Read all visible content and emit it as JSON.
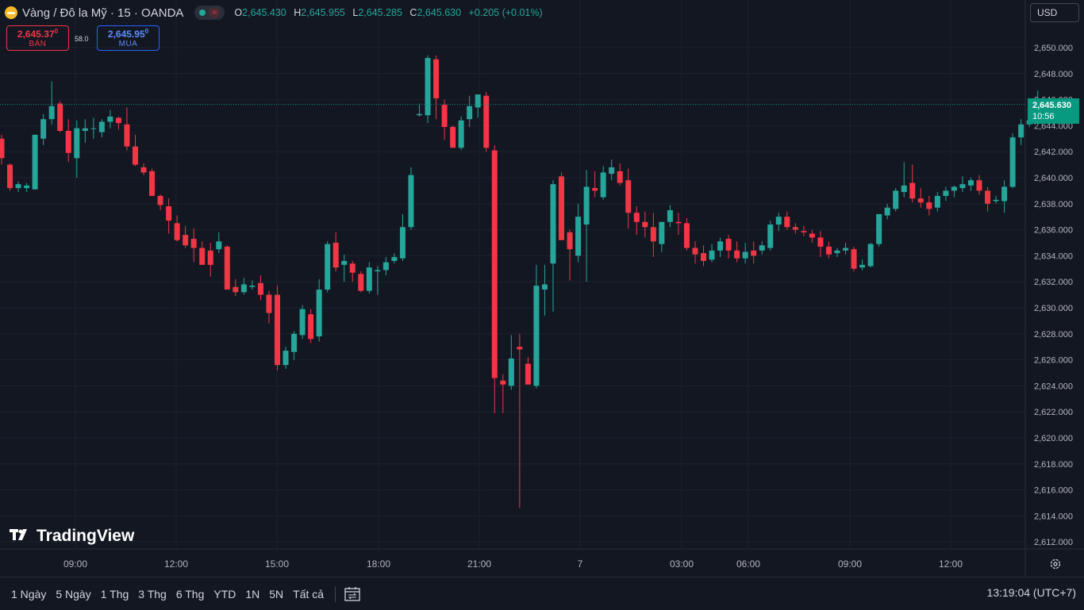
{
  "header": {
    "symbol": "Vàng / Đô la Mỹ · 15 · OANDA",
    "approx_glyph": "≈",
    "ohlc": [
      {
        "k": "O",
        "v": "2,645.430"
      },
      {
        "k": "H",
        "v": "2,645.955"
      },
      {
        "k": "L",
        "v": "2,645.285"
      },
      {
        "k": "C",
        "v": "2,645.630"
      }
    ],
    "change": "+0.205 (+0.01%)"
  },
  "trade": {
    "sell_price": "2,645.37",
    "sell_price_sup": "0",
    "sell_label": "BÁN",
    "spread": "58.0",
    "buy_price": "2,645.95",
    "buy_price_sup": "0",
    "buy_label": "MUA"
  },
  "currency": "USD",
  "last_price": {
    "price": "2,645.630",
    "countdown": "10:56"
  },
  "brand": "TradingView",
  "ranges": [
    "1 Ngày",
    "5 Ngày",
    "1 Thg",
    "3 Thg",
    "6 Thg",
    "YTD",
    "1N",
    "5N",
    "Tất cả"
  ],
  "clock": "13:19:04 (UTC+7)",
  "colors": {
    "up": "#26a69a",
    "down": "#f23645",
    "bg": "#131722",
    "grid": "#1e222d"
  },
  "chart_data": {
    "type": "candlestick",
    "ylim": [
      2611.0,
      2651.5
    ],
    "y_ticks": [
      "2,650.000",
      "2,648.000",
      "2,646.000",
      "2,644.000",
      "2,642.000",
      "2,640.000",
      "2,638.000",
      "2,636.000",
      "2,634.000",
      "2,632.000",
      "2,630.000",
      "2,628.000",
      "2,626.000",
      "2,624.000",
      "2,622.000",
      "2,620.000",
      "2,618.000",
      "2,616.000",
      "2,614.000",
      "2,612.000"
    ],
    "x_ticks": [
      "09:00",
      "12:00",
      "15:00",
      "18:00",
      "21:00",
      "7",
      "03:00",
      "06:00",
      "09:00",
      "12:00"
    ],
    "last_price": 2645.63,
    "candles": [
      [
        2643.0,
        2643.3,
        2641.0,
        2641.5
      ],
      [
        2641.0,
        2641.1,
        2639.0,
        2639.2
      ],
      [
        2639.2,
        2639.7,
        2638.9,
        2639.5
      ],
      [
        2639.2,
        2639.6,
        2638.9,
        2639.4
      ],
      [
        2639.1,
        2643.3,
        2639.1,
        2643.3
      ],
      [
        2643.0,
        2644.9,
        2642.5,
        2644.5
      ],
      [
        2644.5,
        2647.4,
        2644.1,
        2645.5
      ],
      [
        2645.7,
        2645.9,
        2643.5,
        2643.6
      ],
      [
        2643.6,
        2644.5,
        2641.2,
        2641.9
      ],
      [
        2641.5,
        2644.4,
        2640.0,
        2643.8
      ],
      [
        2643.6,
        2644.5,
        2642.7,
        2643.8
      ],
      [
        2643.8,
        2644.6,
        2643.0,
        2643.8
      ],
      [
        2643.5,
        2644.5,
        2643.1,
        2644.3
      ],
      [
        2644.3,
        2645.2,
        2643.8,
        2644.7
      ],
      [
        2644.6,
        2644.7,
        2643.7,
        2644.2
      ],
      [
        2644.1,
        2645.4,
        2642.1,
        2642.4
      ],
      [
        2642.4,
        2643.3,
        2640.9,
        2641.0
      ],
      [
        2640.8,
        2641.1,
        2640.2,
        2640.4
      ],
      [
        2640.5,
        2640.7,
        2638.8,
        2638.6
      ],
      [
        2638.6,
        2638.7,
        2637.5,
        2637.9
      ],
      [
        2637.8,
        2638.4,
        2635.7,
        2636.7
      ],
      [
        2636.5,
        2637.1,
        2635.1,
        2635.2
      ],
      [
        2635.6,
        2636.3,
        2634.6,
        2634.8
      ],
      [
        2635.3,
        2636.1,
        2633.5,
        2634.6
      ],
      [
        2634.6,
        2635.1,
        2633.3,
        2633.3
      ],
      [
        2634.4,
        2635.0,
        2632.4,
        2633.3
      ],
      [
        2634.5,
        2635.8,
        2634.2,
        2635.1
      ],
      [
        2634.7,
        2634.8,
        2631.6,
        2631.4
      ],
      [
        2631.6,
        2632.2,
        2630.9,
        2631.2
      ],
      [
        2631.2,
        2632.3,
        2631.0,
        2631.8
      ],
      [
        2631.6,
        2632.1,
        2631.4,
        2631.7
      ],
      [
        2631.9,
        2632.5,
        2630.6,
        2631.0
      ],
      [
        2631.0,
        2631.3,
        2628.8,
        2629.6
      ],
      [
        2631.0,
        2631.7,
        2625.2,
        2625.6
      ],
      [
        2625.6,
        2627.0,
        2625.3,
        2626.7
      ],
      [
        2626.6,
        2628.2,
        2626.0,
        2628.0
      ],
      [
        2627.9,
        2630.2,
        2627.6,
        2629.9
      ],
      [
        2629.5,
        2629.9,
        2627.3,
        2627.6
      ],
      [
        2627.8,
        2632.2,
        2627.4,
        2631.4
      ],
      [
        2631.4,
        2635.1,
        2631.2,
        2634.9
      ],
      [
        2635.0,
        2635.8,
        2632.8,
        2633.1
      ],
      [
        2633.3,
        2634.1,
        2632.0,
        2633.6
      ],
      [
        2633.4,
        2633.6,
        2632.0,
        2632.7
      ],
      [
        2632.6,
        2632.8,
        2631.2,
        2631.3
      ],
      [
        2631.3,
        2633.5,
        2631.1,
        2633.1
      ],
      [
        2632.8,
        2633.2,
        2631.0,
        2632.9
      ],
      [
        2632.9,
        2633.9,
        2632.5,
        2633.5
      ],
      [
        2633.6,
        2634.2,
        2633.4,
        2633.9
      ],
      [
        2633.8,
        2637.2,
        2633.6,
        2636.2
      ],
      [
        2636.2,
        2640.8,
        2636.0,
        2640.2
      ],
      [
        2644.8,
        2645.7,
        2644.7,
        2644.9
      ],
      [
        2644.8,
        2649.4,
        2644.2,
        2649.2
      ],
      [
        2649.1,
        2649.4,
        2644.5,
        2646.1
      ],
      [
        2645.6,
        2646.0,
        2642.9,
        2643.9
      ],
      [
        2643.9,
        2644.0,
        2642.5,
        2642.3
      ],
      [
        2642.3,
        2644.7,
        2642.1,
        2644.4
      ],
      [
        2644.5,
        2646.3,
        2643.9,
        2645.5
      ],
      [
        2645.4,
        2646.1,
        2644.6,
        2646.4
      ],
      [
        2646.3,
        2646.6,
        2642.0,
        2642.3
      ],
      [
        2642.1,
        2642.5,
        2621.9,
        2624.6
      ],
      [
        2624.4,
        2624.9,
        2621.9,
        2624.1
      ],
      [
        2624.0,
        2627.9,
        2623.7,
        2626.1
      ],
      [
        2627.0,
        2628.0,
        2614.6,
        2626.8
      ],
      [
        2625.7,
        2626.2,
        2624.2,
        2624.1
      ],
      [
        2624.0,
        2633.3,
        2623.8,
        2631.7
      ],
      [
        2631.4,
        2633.3,
        2629.4,
        2631.8
      ],
      [
        2633.4,
        2639.8,
        2629.7,
        2639.5
      ],
      [
        2640.1,
        2640.4,
        2635.4,
        2635.2
      ],
      [
        2635.8,
        2636.0,
        2632.1,
        2634.5
      ],
      [
        2634.0,
        2638.0,
        2633.5,
        2637.0
      ],
      [
        2636.4,
        2640.6,
        2632.0,
        2639.3
      ],
      [
        2639.2,
        2640.5,
        2638.5,
        2639.0
      ],
      [
        2638.5,
        2640.9,
        2638.3,
        2640.4
      ],
      [
        2640.3,
        2641.4,
        2639.8,
        2640.8
      ],
      [
        2640.5,
        2641.1,
        2639.4,
        2639.6
      ],
      [
        2639.8,
        2640.7,
        2636.1,
        2637.3
      ],
      [
        2637.3,
        2637.8,
        2635.6,
        2636.6
      ],
      [
        2636.6,
        2637.4,
        2635.4,
        2636.2
      ],
      [
        2636.2,
        2637.3,
        2633.9,
        2635.1
      ],
      [
        2634.9,
        2636.6,
        2634.3,
        2636.6
      ],
      [
        2636.6,
        2637.9,
        2636.2,
        2637.5
      ],
      [
        2636.6,
        2637.3,
        2635.6,
        2636.5
      ],
      [
        2636.5,
        2636.9,
        2634.4,
        2634.6
      ],
      [
        2634.6,
        2635.1,
        2633.4,
        2634.1
      ],
      [
        2634.2,
        2634.8,
        2633.2,
        2633.6
      ],
      [
        2633.7,
        2634.9,
        2633.5,
        2634.4
      ],
      [
        2634.4,
        2635.4,
        2633.9,
        2635.1
      ],
      [
        2635.3,
        2635.6,
        2633.8,
        2634.4
      ],
      [
        2634.4,
        2635.1,
        2633.5,
        2633.8
      ],
      [
        2633.8,
        2635.0,
        2633.4,
        2634.3
      ],
      [
        2634.4,
        2635.1,
        2633.4,
        2634.0
      ],
      [
        2634.4,
        2635.1,
        2634.1,
        2634.8
      ],
      [
        2634.6,
        2636.7,
        2634.4,
        2636.4
      ],
      [
        2636.4,
        2637.3,
        2635.9,
        2637.0
      ],
      [
        2637.0,
        2637.4,
        2636.0,
        2636.2
      ],
      [
        2636.2,
        2636.5,
        2635.7,
        2636.0
      ],
      [
        2635.9,
        2636.3,
        2635.5,
        2635.8
      ],
      [
        2635.7,
        2636.0,
        2635.0,
        2635.4
      ],
      [
        2635.4,
        2635.9,
        2633.9,
        2634.7
      ],
      [
        2634.7,
        2635.1,
        2633.8,
        2634.1
      ],
      [
        2634.2,
        2634.6,
        2633.9,
        2634.4
      ],
      [
        2634.4,
        2635.0,
        2634.1,
        2634.6
      ],
      [
        2634.5,
        2634.7,
        2632.8,
        2633.0
      ],
      [
        2633.1,
        2633.7,
        2632.9,
        2633.3
      ],
      [
        2633.2,
        2635.0,
        2633.1,
        2634.9
      ],
      [
        2634.9,
        2637.2,
        2634.7,
        2637.2
      ],
      [
        2637.1,
        2638.0,
        2636.8,
        2637.7
      ],
      [
        2637.6,
        2639.2,
        2637.4,
        2639.0
      ],
      [
        2638.9,
        2641.2,
        2638.5,
        2639.4
      ],
      [
        2639.6,
        2641.0,
        2638.1,
        2638.4
      ],
      [
        2638.4,
        2639.2,
        2637.7,
        2638.1
      ],
      [
        2638.1,
        2638.6,
        2637.1,
        2637.6
      ],
      [
        2637.7,
        2638.9,
        2637.4,
        2638.6
      ],
      [
        2638.6,
        2639.3,
        2638.2,
        2639.0
      ],
      [
        2639.0,
        2639.4,
        2638.5,
        2639.3
      ],
      [
        2639.2,
        2640.1,
        2638.9,
        2639.5
      ],
      [
        2639.4,
        2640.0,
        2639.0,
        2639.8
      ],
      [
        2639.8,
        2640.2,
        2638.7,
        2639.0
      ],
      [
        2639.0,
        2639.3,
        2637.4,
        2638.0
      ],
      [
        2638.2,
        2638.6,
        2638.0,
        2638.3
      ],
      [
        2638.2,
        2639.8,
        2637.3,
        2639.3
      ],
      [
        2639.3,
        2643.4,
        2639.2,
        2643.1
      ],
      [
        2643.1,
        2644.5,
        2642.5,
        2644.1
      ],
      [
        2644.1,
        2644.6,
        2643.9,
        2644.4
      ],
      [
        2644.3,
        2646.7,
        2644.0,
        2645.3
      ],
      [
        2645.4,
        2645.9,
        2645.2,
        2645.6
      ]
    ]
  }
}
